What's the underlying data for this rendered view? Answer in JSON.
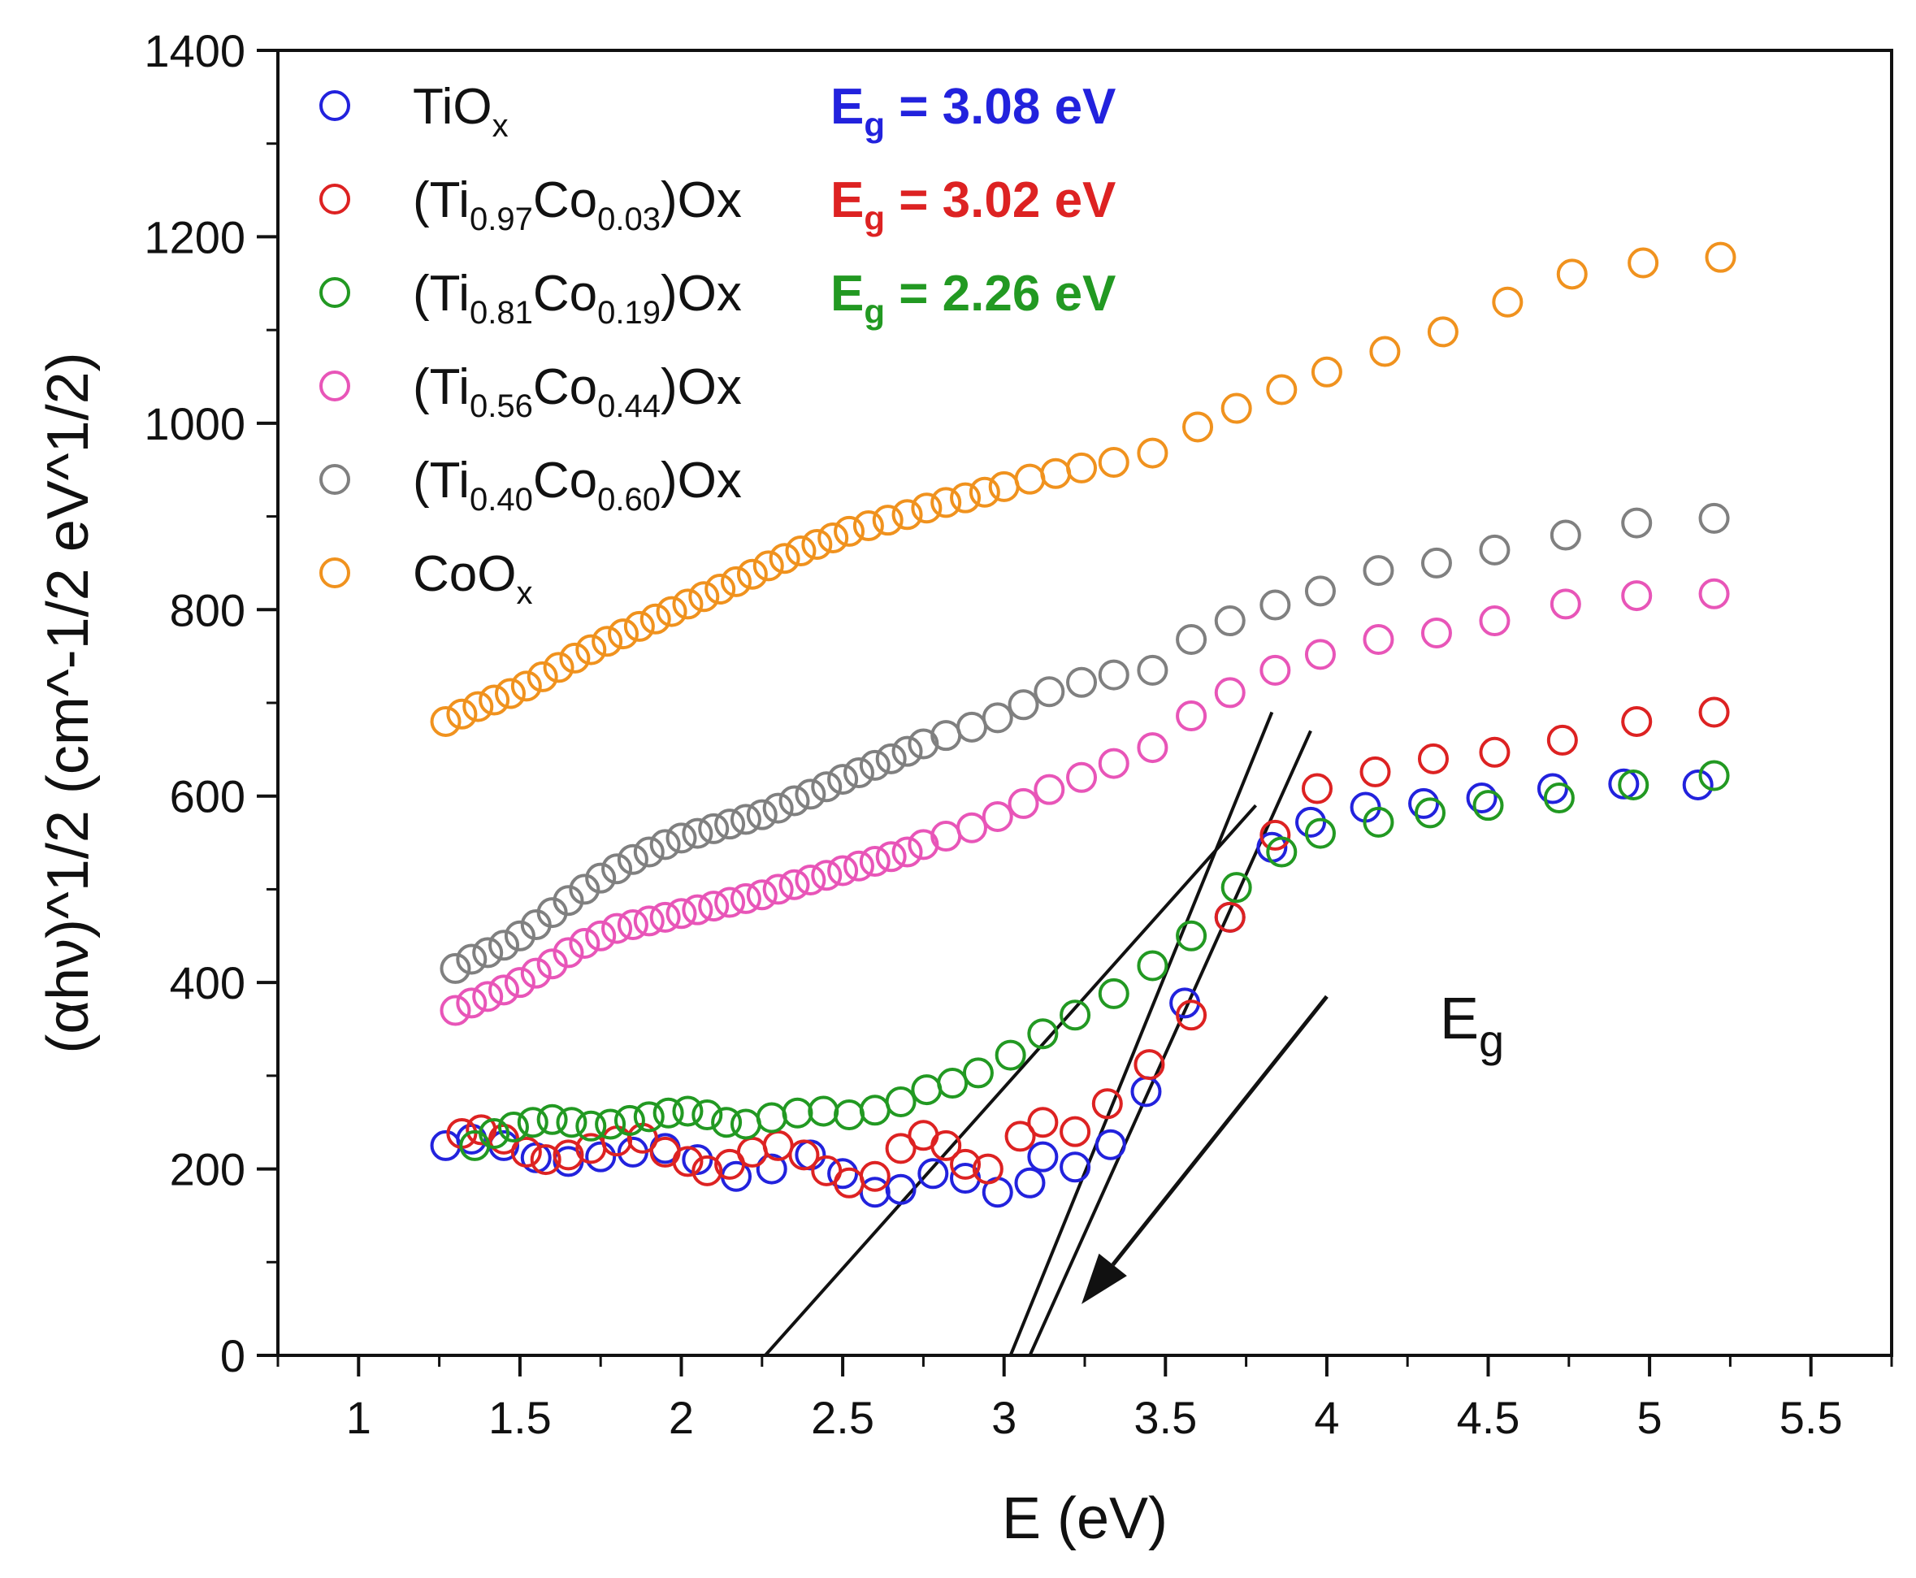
{
  "chart_data": {
    "type": "scatter",
    "xlabel": "E (eV)",
    "ylabel": "(αhν)^1/2 (cm^-1/2 eV^1/2)",
    "xlim": [
      0.75,
      5.75
    ],
    "ylim": [
      0,
      1400
    ],
    "xticks": [
      "1",
      "1.5",
      "2",
      "2.5",
      "3",
      "3.5",
      "4",
      "4.5",
      "5",
      "5.5"
    ],
    "yticks": [
      "0",
      "200",
      "400",
      "600",
      "800",
      "1000",
      "1200",
      "1400"
    ],
    "series": [
      {
        "name": "TiOx",
        "color": "#2222dd",
        "x": [
          1.27,
          1.35,
          1.45,
          1.55,
          1.65,
          1.75,
          1.85,
          1.95,
          2.05,
          2.17,
          2.28,
          2.4,
          2.5,
          2.6,
          2.68,
          2.78,
          2.88,
          2.98,
          3.08,
          3.12,
          3.22,
          3.33,
          3.44,
          3.56,
          3.7,
          3.83,
          3.95,
          4.12,
          4.3,
          4.48,
          4.7,
          4.92,
          5.15
        ],
        "y": [
          225,
          232,
          225,
          212,
          208,
          213,
          218,
          222,
          210,
          192,
          200,
          215,
          195,
          175,
          178,
          195,
          190,
          175,
          185,
          213,
          202,
          226,
          283,
          378,
          470,
          545,
          572,
          588,
          592,
          598,
          608,
          613,
          612
        ]
      },
      {
        "name": "(Ti0.97Co0.03)Ox",
        "color": "#dd2222",
        "x": [
          1.32,
          1.38,
          1.45,
          1.52,
          1.58,
          1.65,
          1.72,
          1.8,
          1.88,
          1.95,
          2.02,
          2.08,
          2.15,
          2.22,
          2.3,
          2.38,
          2.45,
          2.52,
          2.6,
          2.68,
          2.75,
          2.82,
          2.88,
          2.95,
          3.05,
          3.12,
          3.22,
          3.32,
          3.45,
          3.58,
          3.7,
          3.84,
          3.97,
          4.15,
          4.33,
          4.52,
          4.73,
          4.96,
          5.2
        ],
        "y": [
          238,
          242,
          232,
          218,
          210,
          215,
          222,
          230,
          233,
          218,
          208,
          198,
          205,
          218,
          225,
          215,
          198,
          185,
          192,
          222,
          236,
          225,
          205,
          200,
          235,
          250,
          240,
          270,
          312,
          365,
          470,
          558,
          608,
          626,
          640,
          647,
          660,
          680,
          690
        ]
      },
      {
        "name": "(Ti0.81Co0.19)Ox",
        "color": "#229922",
        "x": [
          1.36,
          1.42,
          1.48,
          1.54,
          1.6,
          1.66,
          1.72,
          1.78,
          1.84,
          1.9,
          1.96,
          2.02,
          2.08,
          2.14,
          2.2,
          2.28,
          2.36,
          2.44,
          2.52,
          2.6,
          2.68,
          2.76,
          2.84,
          2.92,
          3.02,
          3.12,
          3.22,
          3.34,
          3.46,
          3.58,
          3.72,
          3.86,
          3.98,
          4.16,
          4.32,
          4.5,
          4.72,
          4.95,
          5.2
        ],
        "y": [
          225,
          238,
          245,
          250,
          253,
          250,
          246,
          248,
          252,
          256,
          260,
          262,
          258,
          250,
          248,
          255,
          260,
          262,
          258,
          263,
          272,
          285,
          292,
          303,
          322,
          345,
          365,
          388,
          418,
          450,
          502,
          540,
          560,
          572,
          582,
          590,
          598,
          612,
          622
        ]
      },
      {
        "name": "(Ti0.56Co0.44)Ox",
        "color": "#e855b8",
        "x": [
          1.3,
          1.35,
          1.4,
          1.45,
          1.5,
          1.55,
          1.6,
          1.65,
          1.7,
          1.75,
          1.8,
          1.85,
          1.9,
          1.95,
          2.0,
          2.05,
          2.1,
          2.15,
          2.2,
          2.25,
          2.3,
          2.35,
          2.4,
          2.45,
          2.5,
          2.55,
          2.6,
          2.65,
          2.7,
          2.75,
          2.82,
          2.9,
          2.98,
          3.06,
          3.14,
          3.24,
          3.34,
          3.46,
          3.58,
          3.7,
          3.84,
          3.98,
          4.16,
          4.34,
          4.52,
          4.74,
          4.96,
          5.2
        ],
        "y": [
          370,
          378,
          385,
          392,
          400,
          410,
          420,
          432,
          442,
          450,
          458,
          462,
          466,
          470,
          474,
          478,
          482,
          486,
          490,
          494,
          500,
          505,
          510,
          515,
          520,
          525,
          530,
          535,
          540,
          548,
          557,
          566,
          578,
          592,
          607,
          620,
          635,
          652,
          686,
          711,
          735,
          752,
          768,
          775,
          788,
          806,
          815,
          817
        ]
      },
      {
        "name": "(Ti0.40Co0.60)Ox",
        "color": "#808080",
        "x": [
          1.3,
          1.35,
          1.4,
          1.45,
          1.5,
          1.55,
          1.6,
          1.65,
          1.7,
          1.75,
          1.8,
          1.85,
          1.9,
          1.95,
          2.0,
          2.05,
          2.1,
          2.15,
          2.2,
          2.25,
          2.3,
          2.35,
          2.4,
          2.45,
          2.5,
          2.55,
          2.6,
          2.65,
          2.7,
          2.75,
          2.82,
          2.9,
          2.98,
          3.06,
          3.14,
          3.24,
          3.34,
          3.46,
          3.58,
          3.7,
          3.84,
          3.98,
          4.16,
          4.34,
          4.52,
          4.74,
          4.96,
          5.2
        ],
        "y": [
          415,
          425,
          432,
          440,
          450,
          462,
          475,
          488,
          500,
          512,
          522,
          532,
          540,
          548,
          555,
          560,
          565,
          570,
          575,
          580,
          587,
          595,
          602,
          610,
          618,
          625,
          633,
          640,
          648,
          656,
          665,
          674,
          684,
          698,
          712,
          722,
          730,
          735,
          768,
          788,
          805,
          820,
          842,
          850,
          864,
          880,
          893,
          898
        ]
      },
      {
        "name": "CoOx",
        "color": "#f0921e",
        "x": [
          1.27,
          1.32,
          1.37,
          1.42,
          1.47,
          1.52,
          1.57,
          1.62,
          1.67,
          1.72,
          1.77,
          1.82,
          1.87,
          1.92,
          1.97,
          2.02,
          2.07,
          2.12,
          2.17,
          2.22,
          2.27,
          2.32,
          2.37,
          2.42,
          2.47,
          2.52,
          2.58,
          2.64,
          2.7,
          2.76,
          2.82,
          2.88,
          2.94,
          3.0,
          3.08,
          3.16,
          3.24,
          3.34,
          3.46,
          3.6,
          3.72,
          3.86,
          4.0,
          4.18,
          4.36,
          4.56,
          4.76,
          4.98,
          5.22
        ],
        "y": [
          680,
          688,
          696,
          703,
          710,
          718,
          728,
          738,
          748,
          757,
          766,
          774,
          782,
          790,
          798,
          806,
          814,
          822,
          830,
          838,
          847,
          855,
          863,
          870,
          877,
          884,
          890,
          896,
          902,
          909,
          915,
          920,
          926,
          932,
          940,
          946,
          952,
          958,
          968,
          996,
          1016,
          1036,
          1055,
          1077,
          1098,
          1130,
          1160,
          1172,
          1178
        ]
      }
    ],
    "legend": {
      "position": "top-left",
      "entries": [
        {
          "base": "TiO",
          "sub1": "x",
          "mid": "",
          "sub2": "",
          "tail": "",
          "color": "#2222dd"
        },
        {
          "base": "(Ti",
          "sub1": "0.97",
          "mid": "Co",
          "sub2": "0.03",
          "tail": ")Ox",
          "color": "#dd2222"
        },
        {
          "base": "(Ti",
          "sub1": "0.81",
          "mid": "Co",
          "sub2": "0.19",
          "tail": ")Ox",
          "color": "#229922"
        },
        {
          "base": "(Ti",
          "sub1": "0.56",
          "mid": "Co",
          "sub2": "0.44",
          "tail": ")Ox",
          "color": "#e855b8"
        },
        {
          "base": "(Ti",
          "sub1": "0.40",
          "mid": "Co",
          "sub2": "0.60",
          "tail": ")Ox",
          "color": "#808080"
        },
        {
          "base": "CoO",
          "sub1": "x",
          "mid": "",
          "sub2": "",
          "tail": "",
          "color": "#f0921e"
        }
      ]
    },
    "bandgap_labels": [
      {
        "prefix": "E",
        "sub": "g",
        "value": " = 3.08 eV",
        "color": "#2222dd"
      },
      {
        "prefix": "E",
        "sub": "g",
        "value": " = 3.02 eV",
        "color": "#dd2222"
      },
      {
        "prefix": "E",
        "sub": "g",
        "value": " = 2.26 eV",
        "color": "#229922"
      }
    ],
    "tangent_lines": [
      {
        "x1": 3.08,
        "y1": 0,
        "x2": 3.95,
        "y2": 670
      },
      {
        "x1": 3.02,
        "y1": 0,
        "x2": 3.83,
        "y2": 690
      },
      {
        "x1": 2.26,
        "y1": 0,
        "x2": 3.78,
        "y2": 590
      }
    ],
    "annotation": {
      "prefix": "E",
      "sub": "g",
      "arrow_from": [
        4.0,
        385
      ],
      "arrow_to": [
        3.24,
        55
      ]
    }
  }
}
